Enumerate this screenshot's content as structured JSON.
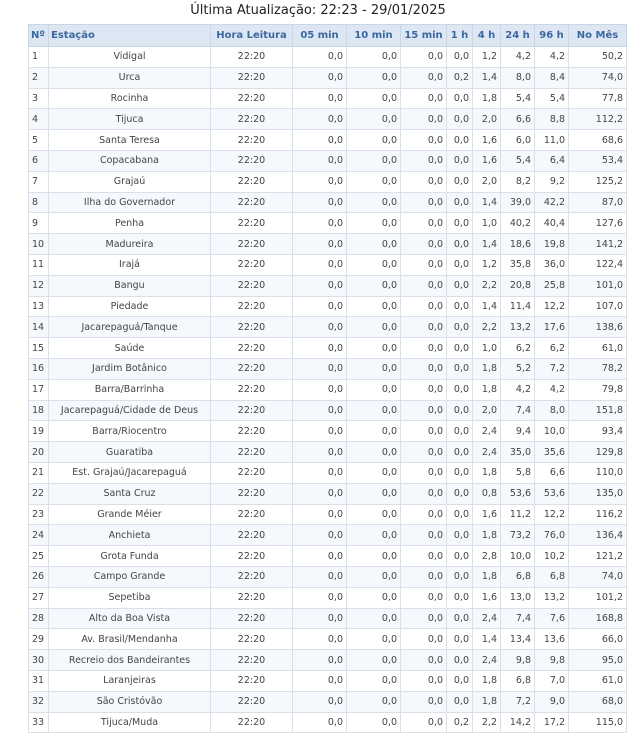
{
  "header": {
    "title": "Última Atualização: 22:23 - 29/01/2025"
  },
  "table": {
    "columns": [
      "Nº",
      "Estação",
      "Hora Leitura",
      "05 min",
      "10 min",
      "15 min",
      "1 h",
      "4 h",
      "24 h",
      "96 h",
      "No Mês"
    ],
    "rows": [
      [
        "1",
        "Vidigal",
        "22:20",
        "0,0",
        "0,0",
        "0,0",
        "0,0",
        "1,2",
        "4,2",
        "4,2",
        "50,2"
      ],
      [
        "2",
        "Urca",
        "22:20",
        "0,0",
        "0,0",
        "0,0",
        "0,2",
        "1,4",
        "8,0",
        "8,4",
        "74,0"
      ],
      [
        "3",
        "Rocinha",
        "22:20",
        "0,0",
        "0,0",
        "0,0",
        "0,0",
        "1,8",
        "5,4",
        "5,4",
        "77,8"
      ],
      [
        "4",
        "Tijuca",
        "22:20",
        "0,0",
        "0,0",
        "0,0",
        "0,0",
        "2,0",
        "6,6",
        "8,8",
        "112,2"
      ],
      [
        "5",
        "Santa Teresa",
        "22:20",
        "0,0",
        "0,0",
        "0,0",
        "0,0",
        "1,6",
        "6,0",
        "11,0",
        "68,6"
      ],
      [
        "6",
        "Copacabana",
        "22:20",
        "0,0",
        "0,0",
        "0,0",
        "0,0",
        "1,6",
        "5,4",
        "6,4",
        "53,4"
      ],
      [
        "7",
        "Grajaú",
        "22:20",
        "0,0",
        "0,0",
        "0,0",
        "0,0",
        "2,0",
        "8,2",
        "9,2",
        "125,2"
      ],
      [
        "8",
        "Ilha do Governador",
        "22:20",
        "0,0",
        "0,0",
        "0,0",
        "0,0",
        "1,4",
        "39,0",
        "42,2",
        "87,0"
      ],
      [
        "9",
        "Penha",
        "22:20",
        "0,0",
        "0,0",
        "0,0",
        "0,0",
        "1,0",
        "40,2",
        "40,4",
        "127,6"
      ],
      [
        "10",
        "Madureira",
        "22:20",
        "0,0",
        "0,0",
        "0,0",
        "0,0",
        "1,4",
        "18,6",
        "19,8",
        "141,2"
      ],
      [
        "11",
        "Irajá",
        "22:20",
        "0,0",
        "0,0",
        "0,0",
        "0,0",
        "1,2",
        "35,8",
        "36,0",
        "122,4"
      ],
      [
        "12",
        "Bangu",
        "22:20",
        "0,0",
        "0,0",
        "0,0",
        "0,0",
        "2,2",
        "20,8",
        "25,8",
        "101,0"
      ],
      [
        "13",
        "Piedade",
        "22:20",
        "0,0",
        "0,0",
        "0,0",
        "0,0",
        "1,4",
        "11,4",
        "12,2",
        "107,0"
      ],
      [
        "14",
        "Jacarepaguá/Tanque",
        "22:20",
        "0,0",
        "0,0",
        "0,0",
        "0,0",
        "2,2",
        "13,2",
        "17,6",
        "138,6"
      ],
      [
        "15",
        "Saúde",
        "22:20",
        "0,0",
        "0,0",
        "0,0",
        "0,0",
        "1,0",
        "6,2",
        "6,2",
        "61,0"
      ],
      [
        "16",
        "Jardim Botânico",
        "22:20",
        "0,0",
        "0,0",
        "0,0",
        "0,0",
        "1,8",
        "5,2",
        "7,2",
        "78,2"
      ],
      [
        "17",
        "Barra/Barrinha",
        "22:20",
        "0,0",
        "0,0",
        "0,0",
        "0,0",
        "1,8",
        "4,2",
        "4,2",
        "79,8"
      ],
      [
        "18",
        "Jacarepaguá/Cidade de Deus",
        "22:20",
        "0,0",
        "0,0",
        "0,0",
        "0,0",
        "2,0",
        "7,4",
        "8,0",
        "151,8"
      ],
      [
        "19",
        "Barra/Riocentro",
        "22:20",
        "0,0",
        "0,0",
        "0,0",
        "0,0",
        "2,4",
        "9,4",
        "10,0",
        "93,4"
      ],
      [
        "20",
        "Guaratiba",
        "22:20",
        "0,0",
        "0,0",
        "0,0",
        "0,0",
        "2,4",
        "35,0",
        "35,6",
        "129,8"
      ],
      [
        "21",
        "Est. Grajaú/Jacarepaguá",
        "22:20",
        "0,0",
        "0,0",
        "0,0",
        "0,0",
        "1,8",
        "5,8",
        "6,6",
        "110,0"
      ],
      [
        "22",
        "Santa Cruz",
        "22:20",
        "0,0",
        "0,0",
        "0,0",
        "0,0",
        "0,8",
        "53,6",
        "53,6",
        "135,0"
      ],
      [
        "23",
        "Grande Méier",
        "22:20",
        "0,0",
        "0,0",
        "0,0",
        "0,0",
        "1,6",
        "11,2",
        "12,2",
        "116,2"
      ],
      [
        "24",
        "Anchieta",
        "22:20",
        "0,0",
        "0,0",
        "0,0",
        "0,0",
        "1,8",
        "73,2",
        "76,0",
        "136,4"
      ],
      [
        "25",
        "Grota Funda",
        "22:20",
        "0,0",
        "0,0",
        "0,0",
        "0,0",
        "2,8",
        "10,0",
        "10,2",
        "121,2"
      ],
      [
        "26",
        "Campo Grande",
        "22:20",
        "0,0",
        "0,0",
        "0,0",
        "0,0",
        "1,8",
        "6,8",
        "6,8",
        "74,0"
      ],
      [
        "27",
        "Sepetiba",
        "22:20",
        "0,0",
        "0,0",
        "0,0",
        "0,0",
        "1,6",
        "13,0",
        "13,2",
        "101,2"
      ],
      [
        "28",
        "Alto da Boa Vista",
        "22:20",
        "0,0",
        "0,0",
        "0,0",
        "0,0",
        "2,4",
        "7,4",
        "7,6",
        "168,8"
      ],
      [
        "29",
        "Av. Brasil/Mendanha",
        "22:20",
        "0,0",
        "0,0",
        "0,0",
        "0,0",
        "1,4",
        "13,4",
        "13,6",
        "66,0"
      ],
      [
        "30",
        "Recreio dos Bandeirantes",
        "22:20",
        "0,0",
        "0,0",
        "0,0",
        "0,0",
        "2,4",
        "9,8",
        "9,8",
        "95,0"
      ],
      [
        "31",
        "Laranjeiras",
        "22:20",
        "0,0",
        "0,0",
        "0,0",
        "0,0",
        "1,8",
        "6,8",
        "7,0",
        "61,0"
      ],
      [
        "32",
        "São Cristóvão",
        "22:20",
        "0,0",
        "0,0",
        "0,0",
        "0,0",
        "1,8",
        "7,2",
        "9,0",
        "68,0"
      ],
      [
        "33",
        "Tijuca/Muda",
        "22:20",
        "0,0",
        "0,0",
        "0,0",
        "0,2",
        "2,2",
        "14,2",
        "17,2",
        "115,0"
      ]
    ]
  }
}
